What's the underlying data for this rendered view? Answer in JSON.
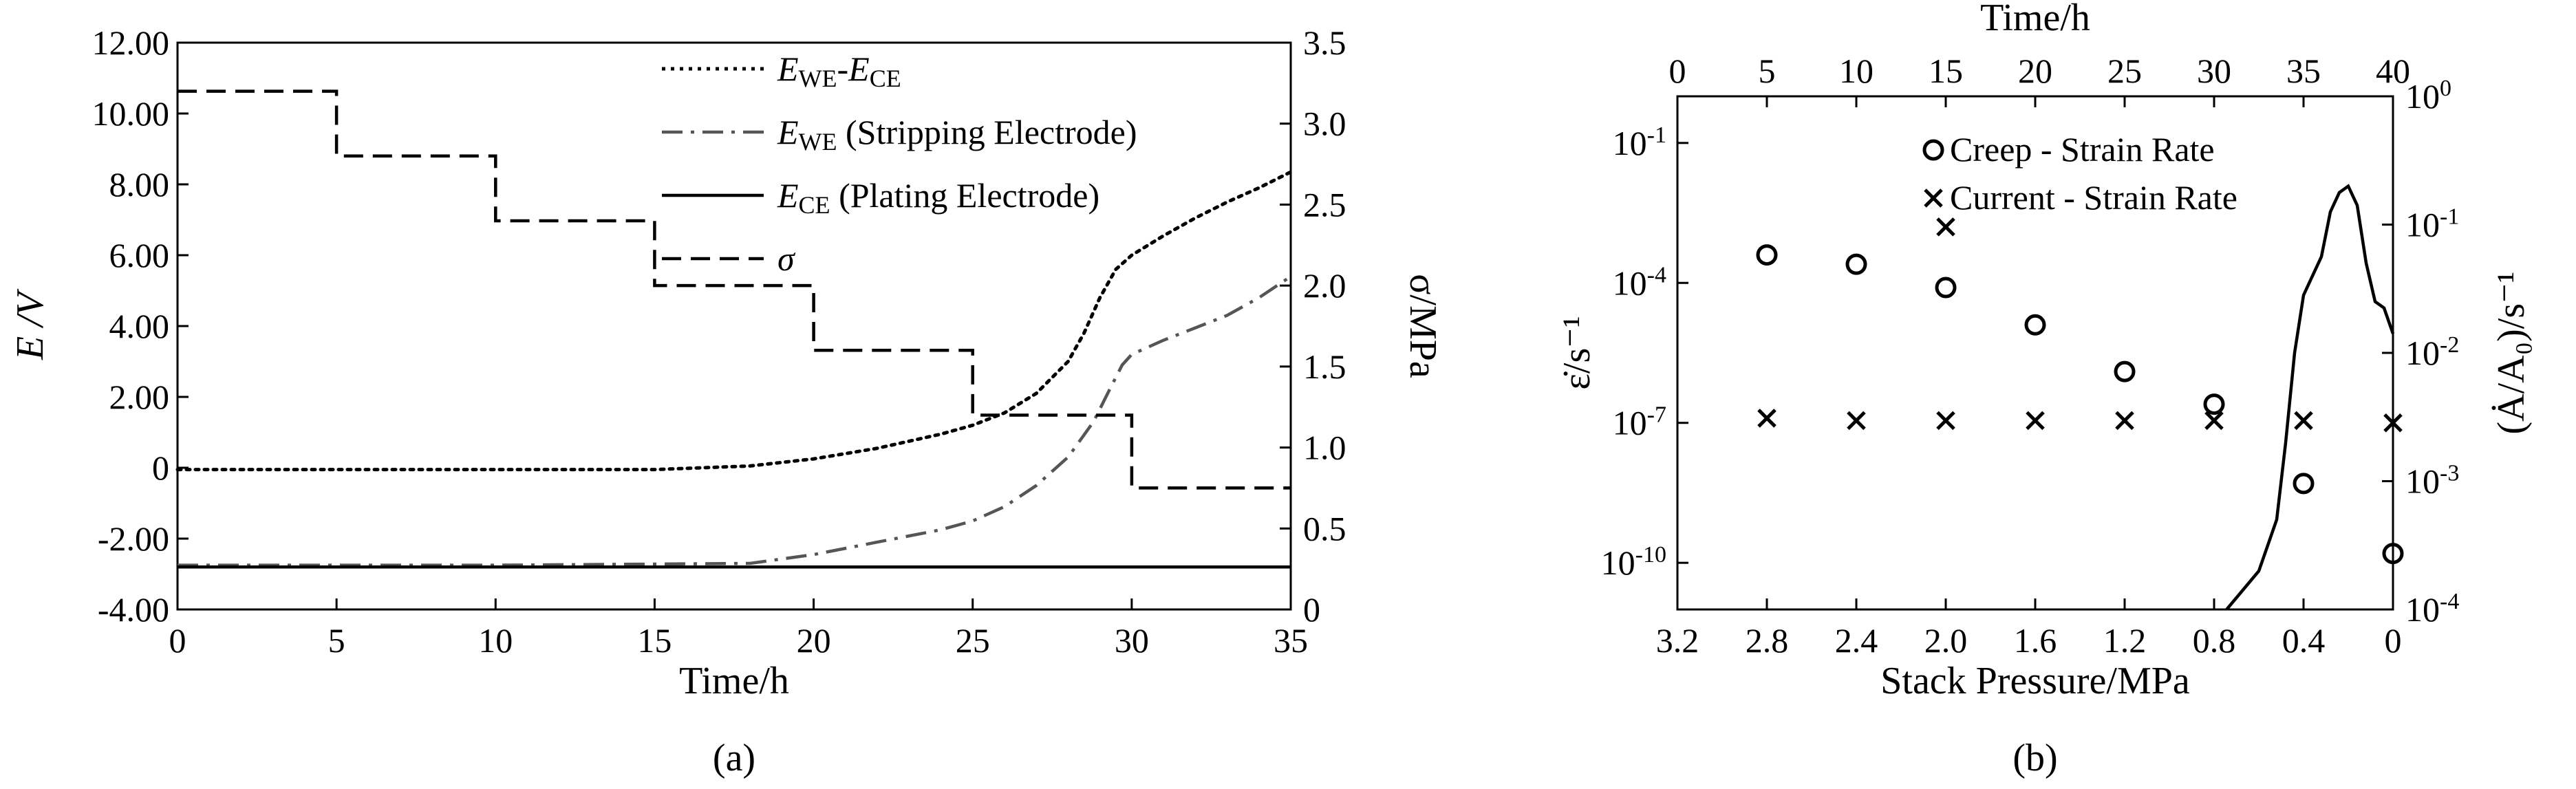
{
  "chart_data": [
    {
      "panel": "a",
      "type": "line",
      "caption": "(a)",
      "xlabel": "Time/h",
      "ylabel": "E /V",
      "y2label": "σ/MPa",
      "xlim": [
        0,
        35
      ],
      "ylim": [
        -4,
        12
      ],
      "y2lim": [
        0,
        3.5
      ],
      "xticks": [
        "0",
        "5",
        "10",
        "15",
        "20",
        "25",
        "30",
        "35"
      ],
      "yticks": [
        "-4.00",
        "-2.00",
        "0",
        "2.00",
        "4.00",
        "6.00",
        "8.00",
        "10.00",
        "12.00"
      ],
      "y2ticks": [
        "0",
        "0.5",
        "1.0",
        "1.5",
        "2.0",
        "2.5",
        "3.0",
        "3.5"
      ],
      "legend_position": "top-right",
      "series": [
        {
          "name": "E_WE-E_CE",
          "legend": {
            "main": "E",
            "sub1": "WE",
            "mid": "-",
            "main2": "E",
            "sub2": "CE",
            "suffix": ""
          },
          "axis": "left",
          "style": "dotted",
          "color": "#000000",
          "points": [
            [
              0,
              -0.05
            ],
            [
              5,
              -0.05
            ],
            [
              10,
              -0.05
            ],
            [
              15,
              -0.05
            ],
            [
              18,
              0.05
            ],
            [
              20,
              0.25
            ],
            [
              22,
              0.55
            ],
            [
              24,
              0.95
            ],
            [
              25,
              1.2
            ],
            [
              26,
              1.55
            ],
            [
              27,
              2.1
            ],
            [
              28,
              3.0
            ],
            [
              28.5,
              3.8
            ],
            [
              29,
              4.8
            ],
            [
              29.5,
              5.6
            ],
            [
              30,
              6.0
            ],
            [
              31,
              6.55
            ],
            [
              32,
              7.05
            ],
            [
              33,
              7.5
            ],
            [
              34,
              7.9
            ],
            [
              35,
              8.35
            ]
          ]
        },
        {
          "name": "E_WE (Stripping Electrode)",
          "legend": {
            "main": "E",
            "sub1": "WE",
            "mid": "",
            "main2": "",
            "sub2": "",
            "suffix": " (Stripping Electrode)"
          },
          "axis": "left",
          "style": "dashdot",
          "color": "#555555",
          "points": [
            [
              0,
              -2.75
            ],
            [
              10,
              -2.75
            ],
            [
              18,
              -2.7
            ],
            [
              20,
              -2.45
            ],
            [
              22,
              -2.1
            ],
            [
              24,
              -1.75
            ],
            [
              25,
              -1.5
            ],
            [
              26,
              -1.1
            ],
            [
              27,
              -0.5
            ],
            [
              28,
              0.3
            ],
            [
              28.8,
              1.3
            ],
            [
              29.3,
              2.2
            ],
            [
              29.7,
              2.9
            ],
            [
              30,
              3.2
            ],
            [
              31,
              3.6
            ],
            [
              32,
              3.95
            ],
            [
              33,
              4.3
            ],
            [
              34,
              4.8
            ],
            [
              35,
              5.4
            ]
          ]
        },
        {
          "name": "E_CE (Plating Electrode)",
          "legend": {
            "main": "E",
            "sub1": "CE",
            "mid": "",
            "main2": "",
            "sub2": "",
            "suffix": " (Plating Electrode)"
          },
          "axis": "left",
          "style": "solid",
          "color": "#000000",
          "points": [
            [
              0,
              -2.8
            ],
            [
              35,
              -2.8
            ]
          ]
        },
        {
          "name": "σ",
          "legend": {
            "main": "σ",
            "sub1": "",
            "mid": "",
            "main2": "",
            "sub2": "",
            "suffix": ""
          },
          "axis": "right",
          "style": "dashed",
          "color": "#000000",
          "points": [
            [
              0,
              3.2
            ],
            [
              5,
              3.2
            ],
            [
              5,
              2.8
            ],
            [
              10,
              2.8
            ],
            [
              10,
              2.4
            ],
            [
              15,
              2.4
            ],
            [
              15,
              2.0
            ],
            [
              20,
              2.0
            ],
            [
              20,
              1.6
            ],
            [
              25,
              1.6
            ],
            [
              25,
              1.2
            ],
            [
              30,
              1.2
            ],
            [
              30,
              0.75
            ],
            [
              35,
              0.75
            ]
          ]
        }
      ]
    },
    {
      "panel": "b",
      "type": "scatter",
      "caption": "(b)",
      "xlabel": "Stack Pressure/MPa",
      "x2label": "Time/h",
      "ylabel": "ε̇/s⁻¹",
      "y2label": "(Ȧ/A₀)/s⁻¹",
      "xlim": [
        3.2,
        0
      ],
      "x2lim": [
        0,
        40
      ],
      "yscale": "log",
      "ylim_exponent": [
        -11,
        0
      ],
      "y2scale": "log",
      "y2lim_exponent": [
        -4,
        0
      ],
      "xticks": [
        "3.2",
        "2.8",
        "2.4",
        "2.0",
        "1.6",
        "1.2",
        "0.8",
        "0.4",
        "0"
      ],
      "x2ticks": [
        "0",
        "5",
        "10",
        "15",
        "20",
        "25",
        "30",
        "35",
        "40"
      ],
      "yticks": [
        {
          "base": "10",
          "exp": "-10"
        },
        {
          "base": "10",
          "exp": "-7"
        },
        {
          "base": "10",
          "exp": "-4"
        },
        {
          "base": "10",
          "exp": "-1"
        }
      ],
      "y2ticks": [
        {
          "base": "10",
          "exp": "-4"
        },
        {
          "base": "10",
          "exp": "-3"
        },
        {
          "base": "10",
          "exp": "-2"
        },
        {
          "base": "10",
          "exp": "-1"
        },
        {
          "base": "10",
          "exp": "0"
        }
      ],
      "legend_position": "top-right",
      "series": [
        {
          "name": "Creep - Strain Rate",
          "marker": "circle",
          "axis": "left",
          "points": [
            [
              2.8,
              -3.4
            ],
            [
              2.4,
              -3.6
            ],
            [
              2.0,
              -4.1
            ],
            [
              1.6,
              -4.9
            ],
            [
              1.2,
              -5.9
            ],
            [
              0.8,
              -6.6
            ],
            [
              0.4,
              -8.3
            ],
            [
              0,
              -9.8
            ]
          ]
        },
        {
          "name": "Current - Strain Rate",
          "marker": "cross",
          "axis": "left",
          "points": [
            [
              2.8,
              -6.9
            ],
            [
              2.4,
              -6.95
            ],
            [
              2.0,
              -6.95
            ],
            [
              2.0,
              -2.8
            ],
            [
              1.6,
              -6.95
            ],
            [
              1.2,
              -6.95
            ],
            [
              0.8,
              -6.95
            ],
            [
              0.4,
              -6.95
            ],
            [
              0,
              -7.0
            ]
          ]
        },
        {
          "name": "",
          "marker": "none",
          "axis": "right",
          "x_axis": "top",
          "style": "solid",
          "points": [
            [
              30.7,
              -4.1
            ],
            [
              32.5,
              -3.7
            ],
            [
              33.5,
              -3.3
            ],
            [
              34,
              -2.7
            ],
            [
              34.5,
              -2.0
            ],
            [
              35,
              -1.55
            ],
            [
              35.5,
              -1.4
            ],
            [
              36,
              -1.25
            ],
            [
              36.5,
              -0.9
            ],
            [
              37,
              -0.75
            ],
            [
              37.5,
              -0.7
            ],
            [
              38,
              -0.85
            ],
            [
              38.5,
              -1.3
            ],
            [
              39,
              -1.6
            ],
            [
              39.5,
              -1.65
            ],
            [
              40,
              -1.85
            ]
          ]
        }
      ]
    }
  ]
}
